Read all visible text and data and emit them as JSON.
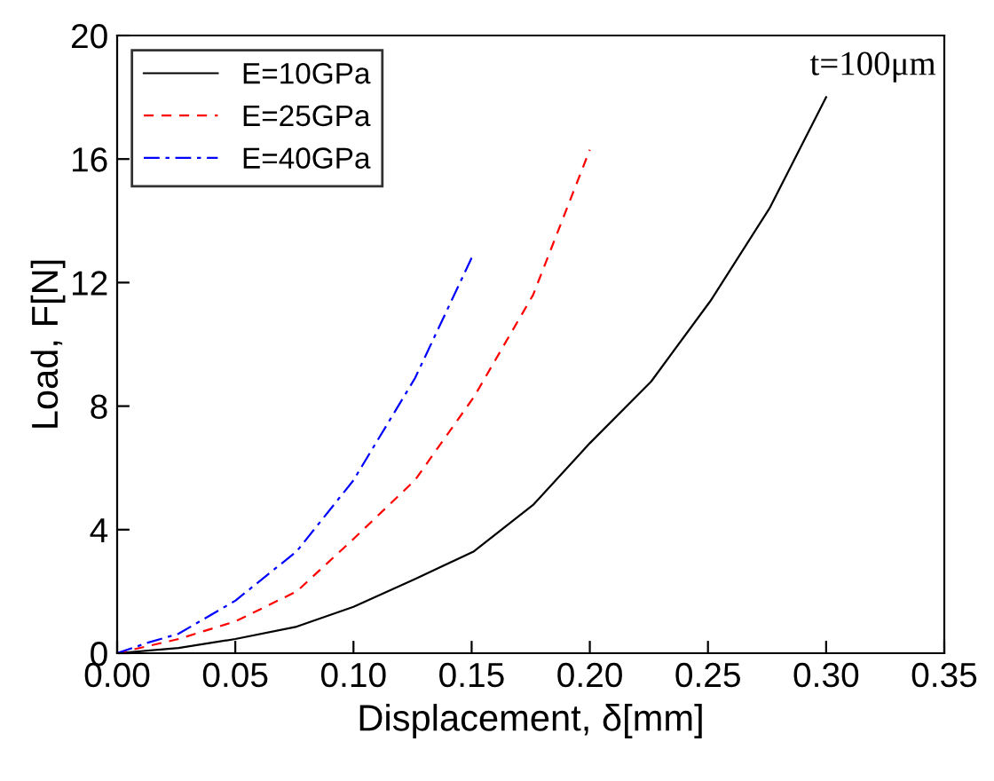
{
  "chart_data": {
    "type": "line",
    "xlabel": "Displacement, δ[mm]",
    "ylabel": "Load, F[N]",
    "xlim": [
      0,
      0.35
    ],
    "ylim": [
      0,
      20
    ],
    "xticks": [
      {
        "value": 0,
        "label": "0.00"
      },
      {
        "value": 0.05,
        "label": "0.05"
      },
      {
        "value": 0.1,
        "label": "0.10"
      },
      {
        "value": 0.15,
        "label": "0.15"
      },
      {
        "value": 0.2,
        "label": "0.20"
      },
      {
        "value": 0.25,
        "label": "0.25"
      },
      {
        "value": 0.3,
        "label": "0.30"
      },
      {
        "value": 0.35,
        "label": "0.35"
      }
    ],
    "yticks": [
      0,
      4,
      8,
      12,
      16,
      20
    ],
    "legend": "top left",
    "grid": false,
    "annotations": [
      "t=100μm"
    ],
    "series": [
      {
        "name": "E=10GPa",
        "color": "#000000",
        "line_style": "solid",
        "x": [
          0,
          0.026,
          0.05,
          0.076,
          0.1,
          0.126,
          0.151,
          0.176,
          0.2,
          0.226,
          0.251,
          0.276,
          0.3
        ],
        "values": [
          0,
          0.17,
          0.46,
          0.86,
          1.5,
          2.4,
          3.3,
          4.8,
          6.8,
          8.8,
          11.4,
          14.4,
          18
        ]
      },
      {
        "name": "E=25GPa",
        "color": "#ff0000",
        "line_style": "dashed",
        "x": [
          0,
          0.026,
          0.05,
          0.076,
          0.1,
          0.126,
          0.151,
          0.176,
          0.2
        ],
        "values": [
          0,
          0.46,
          1.03,
          2.0,
          3.7,
          5.6,
          8.3,
          11.6,
          16.3
        ]
      },
      {
        "name": "E=40GPa",
        "color": "#0000ff",
        "line_style": "dashdot",
        "x": [
          0,
          0.013,
          0.026,
          0.05,
          0.076,
          0.1,
          0.126,
          0.15
        ],
        "values": [
          0,
          0.34,
          0.63,
          1.7,
          3.3,
          5.6,
          8.9,
          12.8
        ]
      }
    ]
  }
}
